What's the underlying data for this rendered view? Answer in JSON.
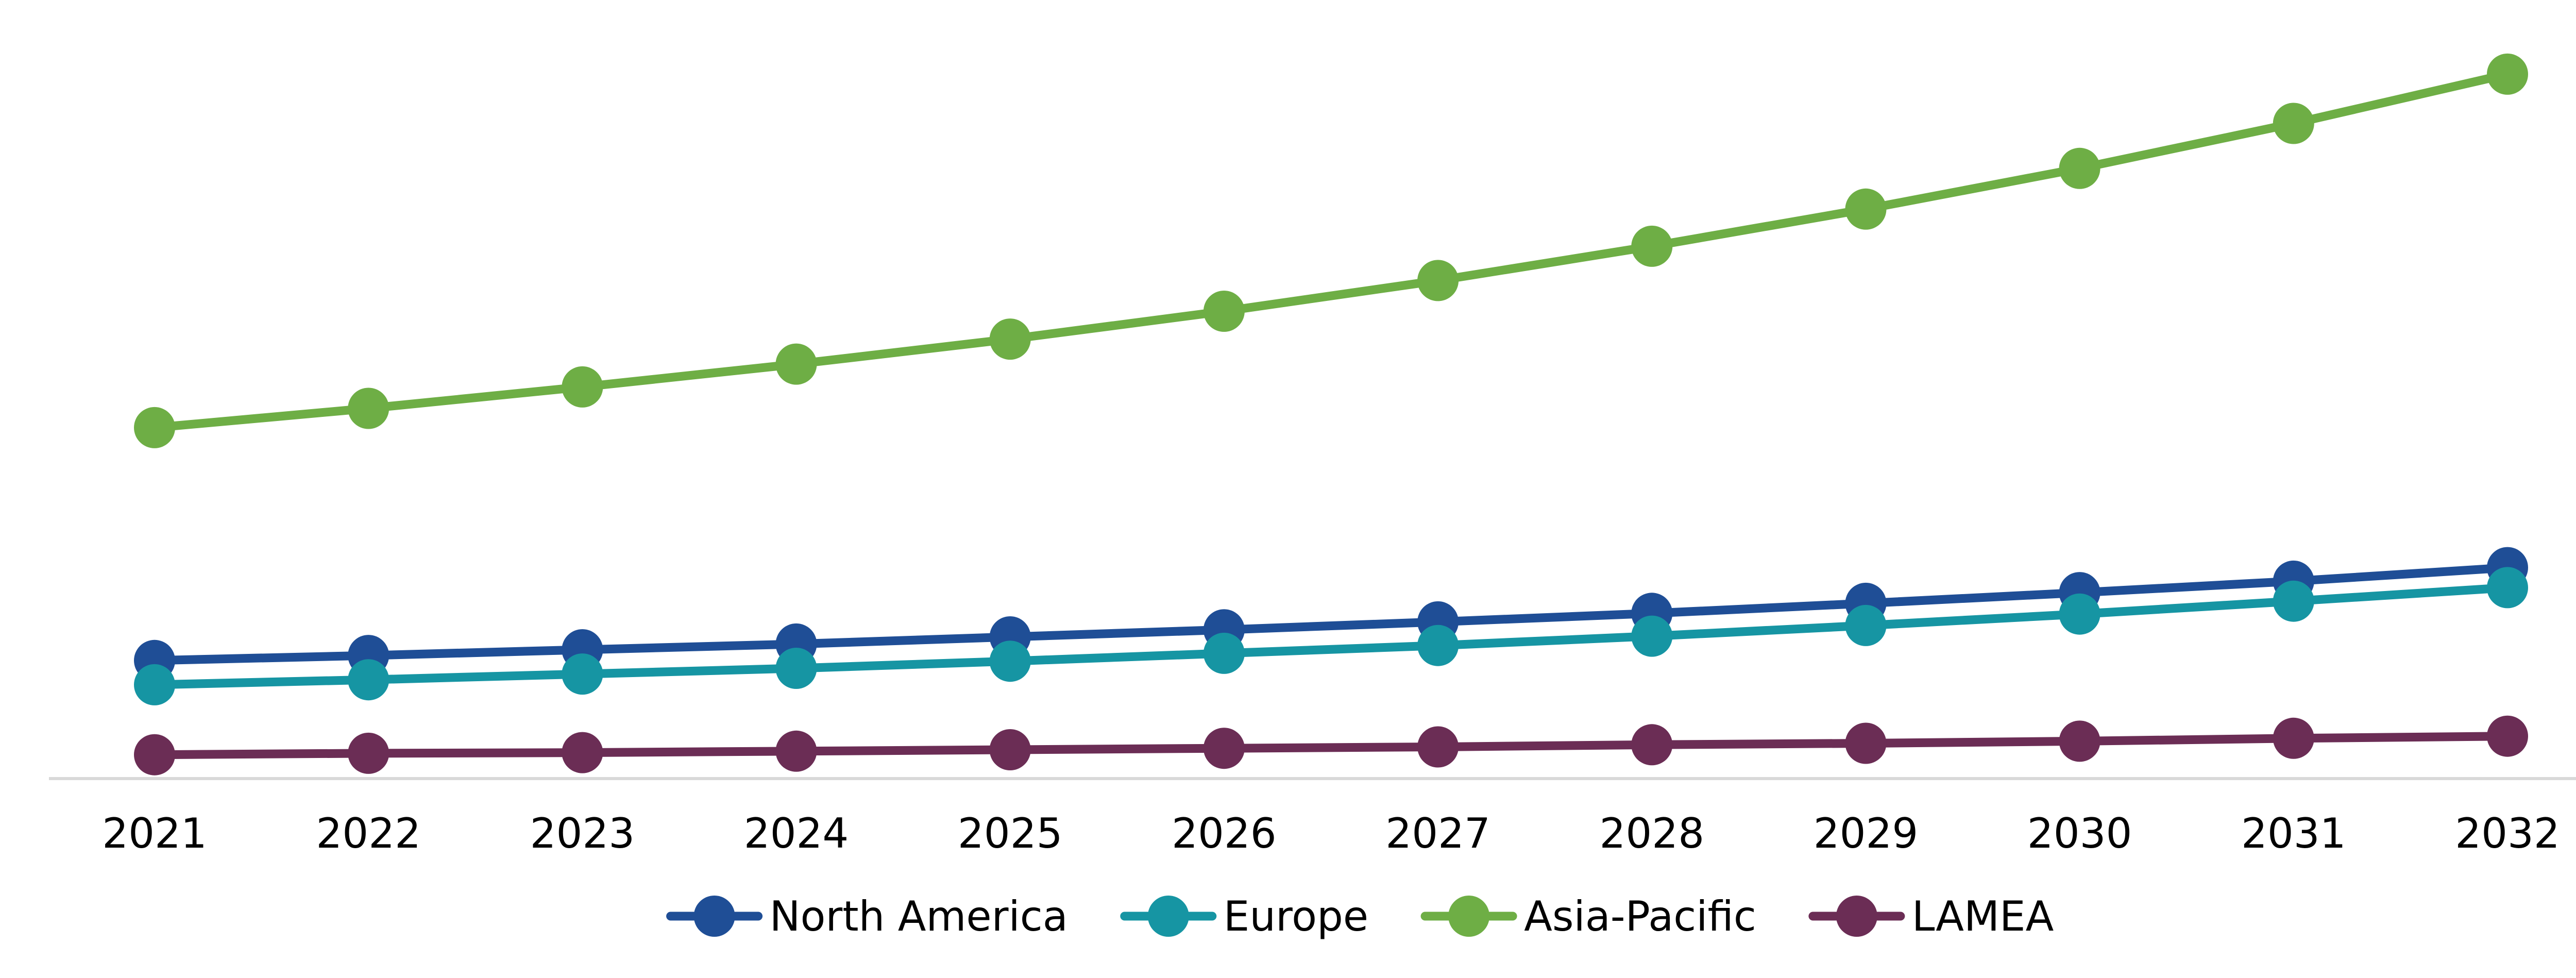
{
  "chart_data": {
    "type": "line",
    "title": "",
    "xlabel": "",
    "ylabel": "",
    "x": [
      "2021",
      "2022",
      "2023",
      "2024",
      "2025",
      "2026",
      "2027",
      "2028",
      "2029",
      "2030",
      "2031",
      "2032"
    ],
    "ylim": [
      0,
      100
    ],
    "y_axis_visible": false,
    "grid": false,
    "legend": "bottom",
    "series": [
      {
        "name": "North America",
        "color": "#1F4E96",
        "values": [
          16.9,
          17.6,
          18.4,
          19.2,
          20.2,
          21.2,
          22.3,
          23.5,
          24.9,
          26.4,
          28.0,
          29.9
        ]
      },
      {
        "name": "Europe",
        "color": "#1695A3",
        "values": [
          13.5,
          14.2,
          15.0,
          15.8,
          16.8,
          17.9,
          19.0,
          20.3,
          21.8,
          23.4,
          25.2,
          27.1
        ]
      },
      {
        "name": "Asia-Pacific",
        "color": "#6EAE45",
        "values": [
          49.5,
          52.2,
          55.2,
          58.4,
          61.9,
          65.8,
          70.1,
          74.9,
          80.1,
          85.8,
          92.1,
          99.0
        ]
      },
      {
        "name": "LAMEA",
        "color": "#6B2D55",
        "values": [
          3.7,
          3.9,
          4.0,
          4.2,
          4.4,
          4.6,
          4.8,
          5.1,
          5.3,
          5.6,
          6.0,
          6.3
        ]
      }
    ]
  }
}
